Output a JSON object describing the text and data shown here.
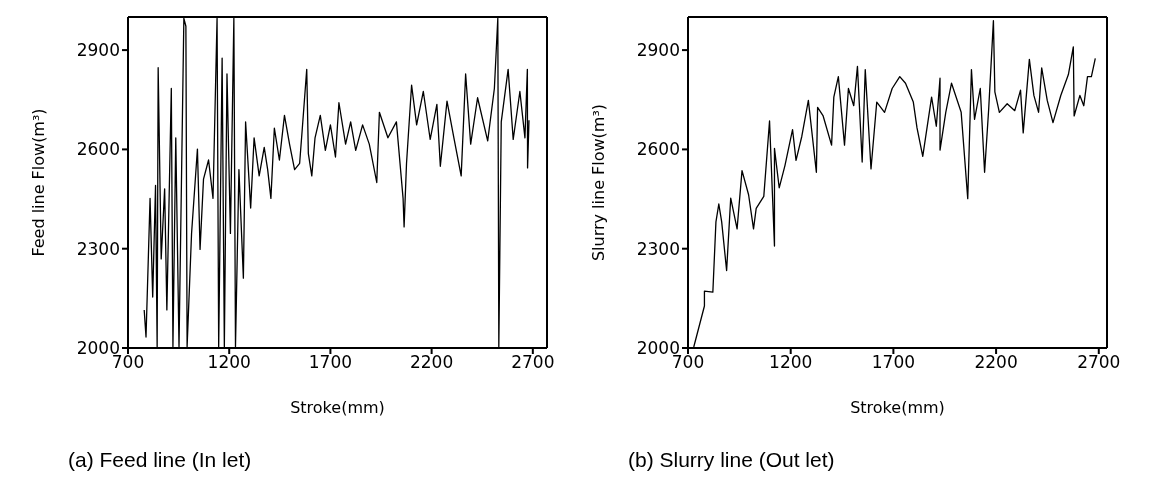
{
  "chart_data": [
    {
      "type": "line",
      "xlabel": "Stroke(mm)",
      "ylabel": "Feed line  Flow(m³)",
      "xlim": [
        700,
        2770
      ],
      "ylim": [
        2000,
        3000
      ],
      "xticks": [
        700,
        1200,
        1700,
        2200,
        2700
      ],
      "yticks": [
        2000,
        2300,
        2600,
        2900
      ],
      "grid": false,
      "legend": false,
      "marker": "none",
      "annotations": [
        "(a) Feed line (In let)"
      ],
      "series": [
        {
          "color": "#000000",
          "x": [
            780,
            789,
            809,
            822,
            836,
            844,
            849,
            864,
            881,
            892,
            914,
            922,
            936,
            952,
            976,
            986,
            992,
            1014,
            1043,
            1056,
            1073,
            1098,
            1120,
            1140,
            1148,
            1165,
            1176,
            1189,
            1206,
            1223,
            1231,
            1248,
            1270,
            1281,
            1306,
            1323,
            1348,
            1373,
            1390,
            1406,
            1423,
            1448,
            1473,
            1498,
            1523,
            1548,
            1560,
            1583,
            1591,
            1608,
            1624,
            1650,
            1675,
            1700,
            1725,
            1742,
            1775,
            1800,
            1825,
            1859,
            1892,
            1929,
            1942,
            1984,
            2026,
            2059,
            2064,
            2076,
            2101,
            2126,
            2159,
            2193,
            2226,
            2243,
            2276,
            2310,
            2346,
            2368,
            2393,
            2427,
            2477,
            2510,
            2527,
            2532,
            2544,
            2578,
            2603,
            2636,
            2661,
            2673,
            2674,
            2681
          ],
          "values": [
            2115,
            2033,
            2452,
            2154,
            2491,
            2004,
            2847,
            2269,
            2481,
            2115,
            2784,
            2004,
            2635,
            2004,
            2996,
            2972,
            2004,
            2346,
            2601,
            2298,
            2510,
            2568,
            2452,
            2996,
            2004,
            2876,
            2004,
            2828,
            2346,
            2996,
            2004,
            2539,
            2211,
            2683,
            2423,
            2635,
            2520,
            2606,
            2539,
            2452,
            2664,
            2568,
            2703,
            2616,
            2539,
            2558,
            2654,
            2842,
            2587,
            2520,
            2635,
            2703,
            2597,
            2674,
            2577,
            2741,
            2616,
            2683,
            2597,
            2674,
            2616,
            2500,
            2712,
            2635,
            2683,
            2452,
            2366,
            2558,
            2794,
            2674,
            2775,
            2630,
            2736,
            2549,
            2746,
            2635,
            2520,
            2828,
            2616,
            2756,
            2626,
            2784,
            2996,
            2004,
            2683,
            2842,
            2630,
            2775,
            2635,
            2842,
            2544,
            2688
          ]
        }
      ]
    },
    {
      "type": "line",
      "xlabel": "Stroke(mm)",
      "ylabel": "Slurry line Flow(m³)",
      "xlim": [
        700,
        2740
      ],
      "ylim": [
        2000,
        3000
      ],
      "xticks": [
        700,
        1200,
        1700,
        2200,
        2700
      ],
      "yticks": [
        2000,
        2300,
        2600,
        2900
      ],
      "grid": false,
      "legend": false,
      "marker": "none",
      "annotations": [
        "(b) Slurry line (Out let)"
      ],
      "series": [
        {
          "color": "#000000",
          "x": [
            728,
            780,
            780,
            821,
            836,
            850,
            864,
            888,
            908,
            939,
            963,
            995,
            1019,
            1032,
            1069,
            1097,
            1121,
            1121,
            1144,
            1172,
            1209,
            1226,
            1254,
            1286,
            1325,
            1331,
            1358,
            1399,
            1410,
            1432,
            1462,
            1481,
            1507,
            1525,
            1548,
            1563,
            1591,
            1619,
            1657,
            1694,
            1731,
            1759,
            1797,
            1815,
            1843,
            1886,
            1909,
            1927,
            1927,
            1955,
            1983,
            2030,
            2062,
            2080,
            2095,
            2123,
            2144,
            2164,
            2187,
            2194,
            2216,
            2254,
            2291,
            2319,
            2332,
            2362,
            2384,
            2407,
            2422,
            2449,
            2477,
            2515,
            2552,
            2576,
            2580,
            2608,
            2627,
            2645,
            2664,
            2683
          ],
          "values": [
            2003,
            2127,
            2172,
            2169,
            2381,
            2435,
            2381,
            2234,
            2453,
            2360,
            2536,
            2463,
            2360,
            2422,
            2458,
            2686,
            2308,
            2603,
            2484,
            2551,
            2660,
            2567,
            2639,
            2748,
            2531,
            2727,
            2701,
            2613,
            2758,
            2820,
            2613,
            2784,
            2732,
            2851,
            2562,
            2841,
            2541,
            2743,
            2712,
            2784,
            2820,
            2800,
            2743,
            2665,
            2579,
            2758,
            2670,
            2815,
            2598,
            2712,
            2800,
            2712,
            2451,
            2841,
            2691,
            2784,
            2531,
            2722,
            2989,
            2774,
            2712,
            2738,
            2717,
            2779,
            2650,
            2872,
            2763,
            2712,
            2846,
            2748,
            2681,
            2763,
            2826,
            2910,
            2701,
            2763,
            2732,
            2820,
            2820,
            2875
          ]
        }
      ]
    }
  ]
}
